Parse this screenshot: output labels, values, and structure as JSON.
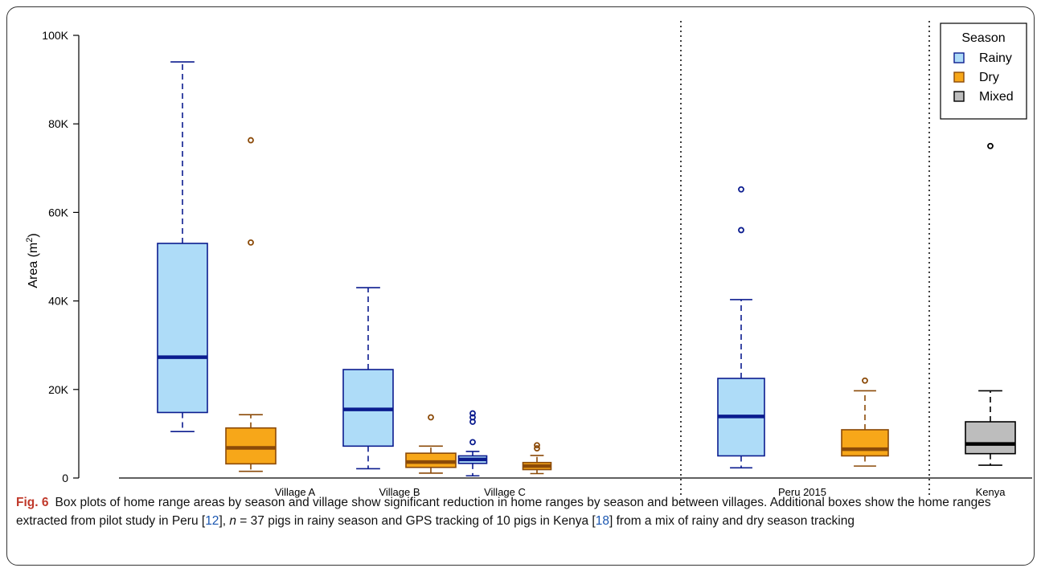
{
  "chart_data": {
    "type": "box",
    "ylabel": "Area (m",
    "ylabel_sup": "2",
    "ylabel_close": ")",
    "ylim": [
      0,
      100000
    ],
    "y_ticks": [
      {
        "value": 0,
        "label": "0"
      },
      {
        "value": 20000,
        "label": "20K"
      },
      {
        "value": 40000,
        "label": "40K"
      },
      {
        "value": 60000,
        "label": "60K"
      },
      {
        "value": 80000,
        "label": "80K"
      },
      {
        "value": 100000,
        "label": "100K"
      }
    ],
    "categories": [
      "Village A",
      "Village B",
      "Village C",
      "Peru 2015",
      "Kenya"
    ],
    "group_separators_after": [
      "Village C",
      "Peru 2015"
    ],
    "legend": {
      "title": "Season",
      "position": "top-right",
      "entries": [
        {
          "label": "Rainy",
          "fill": "#aedcf8",
          "stroke": "#0b1c8f"
        },
        {
          "label": "Dry",
          "fill": "#f7a719",
          "stroke": "#8b4a08"
        },
        {
          "label": "Mixed",
          "fill": "#bdbdbd",
          "stroke": "#000000"
        }
      ]
    },
    "series_colors": {
      "Rainy": {
        "fill": "#aedcf8",
        "stroke": "#0b1c8f"
      },
      "Dry": {
        "fill": "#f7a719",
        "stroke": "#8b4a08"
      },
      "Mixed": {
        "fill": "#bdbdbd",
        "stroke": "#000000"
      }
    },
    "boxes": [
      {
        "category": "Village A",
        "season": "Rainy",
        "whisker_low": 10500,
        "q1": 14800,
        "median": 27300,
        "q3": 53000,
        "whisker_high": 94000,
        "outliers": []
      },
      {
        "category": "Village A",
        "season": "Dry",
        "whisker_low": 1500,
        "q1": 3200,
        "median": 6800,
        "q3": 11300,
        "whisker_high": 14300,
        "outliers": [
          53200,
          76300
        ]
      },
      {
        "category": "Village B",
        "season": "Rainy",
        "whisker_low": 2100,
        "q1": 7200,
        "median": 15500,
        "q3": 24500,
        "whisker_high": 43000,
        "outliers": []
      },
      {
        "category": "Village B",
        "season": "Dry",
        "whisker_low": 1100,
        "q1": 2400,
        "median": 3600,
        "q3": 5600,
        "whisker_high": 7200,
        "outliers": [
          13700
        ]
      },
      {
        "category": "Village C",
        "season": "Rainy",
        "whisker_low": 500,
        "q1": 3300,
        "median": 4200,
        "q3": 5000,
        "whisker_high": 6000,
        "outliers": [
          8100,
          12700,
          13700,
          14600
        ]
      },
      {
        "category": "Village C",
        "season": "Dry",
        "whisker_low": 1000,
        "q1": 1900,
        "median": 2700,
        "q3": 3500,
        "whisker_high": 5100,
        "outliers": [
          6700,
          7400
        ]
      },
      {
        "category": "Peru 2015",
        "season": "Rainy",
        "whisker_low": 2300,
        "q1": 5000,
        "median": 13900,
        "q3": 22500,
        "whisker_high": 40300,
        "outliers": [
          56000,
          65200
        ]
      },
      {
        "category": "Peru 2015",
        "season": "Dry",
        "whisker_low": 2700,
        "q1": 5000,
        "median": 6500,
        "q3": 10900,
        "whisker_high": 19700,
        "outliers": [
          22000
        ]
      },
      {
        "category": "Kenya",
        "season": "Mixed",
        "whisker_low": 2900,
        "q1": 5500,
        "median": 7700,
        "q3": 12700,
        "whisker_high": 19700,
        "outliers": [
          75000
        ]
      }
    ]
  },
  "caption": {
    "label": "Fig. 6",
    "part1": "Box plots of home range areas by season and village show significant reduction in home ranges by season and between villages. Additional boxes show the home ranges extracted from pilot study in Peru [",
    "ref1": "12",
    "part2": "], ",
    "n_var": "n",
    "part3": " = 37 pigs in rainy season and GPS tracking of 10 pigs in Kenya [",
    "ref2": "18",
    "part4": "] from a mix of rainy and dry season tracking"
  }
}
